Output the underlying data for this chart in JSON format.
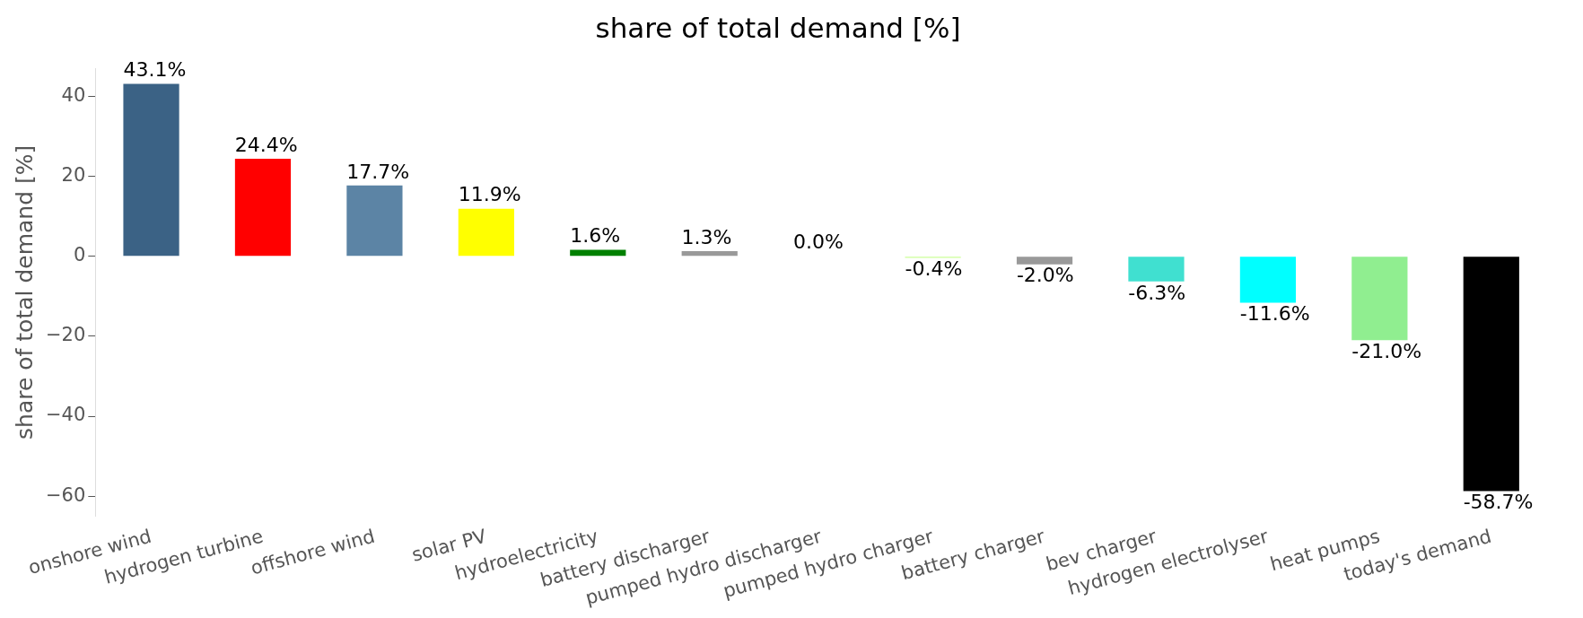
{
  "chart_data": {
    "type": "bar",
    "title": "share of total demand [%]",
    "ylabel": "share of total demand [%]",
    "categories": [
      "onshore wind",
      "hydrogen turbine",
      "offshore wind",
      "solar PV",
      "hydroelectricity",
      "battery discharger",
      "pumped hydro discharger",
      "pumped hydro charger",
      "battery charger",
      "bev charger",
      "hydrogen electrolyser",
      "heat pumps",
      "today's demand"
    ],
    "values": [
      43.1,
      24.4,
      17.7,
      11.9,
      1.6,
      1.3,
      0.0,
      -0.4,
      -2.0,
      -6.3,
      -11.6,
      -21.0,
      -58.7
    ],
    "colors": [
      "#3b6285",
      "#ff0000",
      "#5c84a5",
      "#ffff00",
      "#008000",
      "#999999",
      "#51a8c7",
      "#ccff99",
      "#999999",
      "#40e0d0",
      "#00ffff",
      "#90ee90",
      "#000000"
    ],
    "value_labels": [
      "43.1%",
      "24.4%",
      "17.7%",
      "11.9%",
      "1.6%",
      "1.3%",
      "0.0%",
      "-0.4%",
      "-2.0%",
      "-6.3%",
      "-11.6%",
      "-21.0%",
      "-58.7%"
    ],
    "ylim": [
      -65,
      47
    ],
    "yticks": [
      -60,
      -40,
      -20,
      0,
      20,
      40
    ],
    "grid": false,
    "legend": false
  }
}
